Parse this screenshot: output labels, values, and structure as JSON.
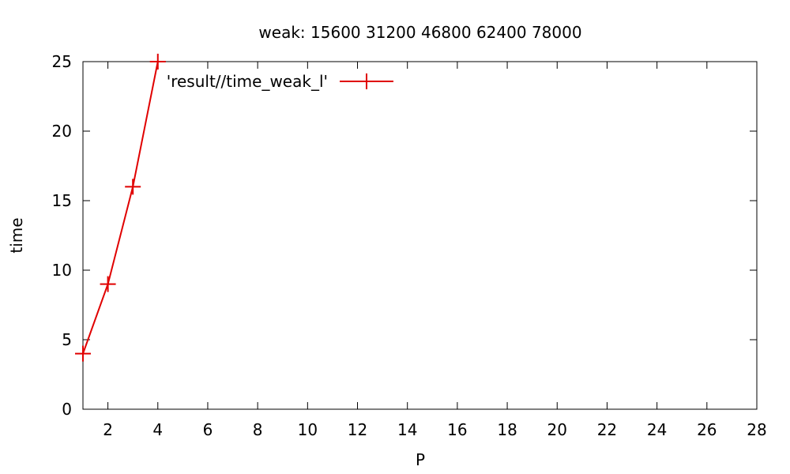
{
  "chart_data": {
    "type": "line",
    "title": "weak: 15600 31200 46800 62400 78000",
    "xlabel": "P",
    "ylabel": "time",
    "xlim": [
      1,
      28
    ],
    "ylim": [
      0,
      25
    ],
    "xticks": [
      2,
      4,
      6,
      8,
      10,
      12,
      14,
      16,
      18,
      20,
      22,
      24,
      26,
      28
    ],
    "yticks": [
      0,
      5,
      10,
      15,
      20,
      25
    ],
    "grid": false,
    "legend_position": "top-left",
    "series": [
      {
        "name": "'result//time_weak_l'",
        "color": "#e00000",
        "marker": "plus",
        "x": [
          1,
          2,
          3,
          4
        ],
        "y": [
          4,
          9,
          16,
          25
        ]
      }
    ]
  }
}
